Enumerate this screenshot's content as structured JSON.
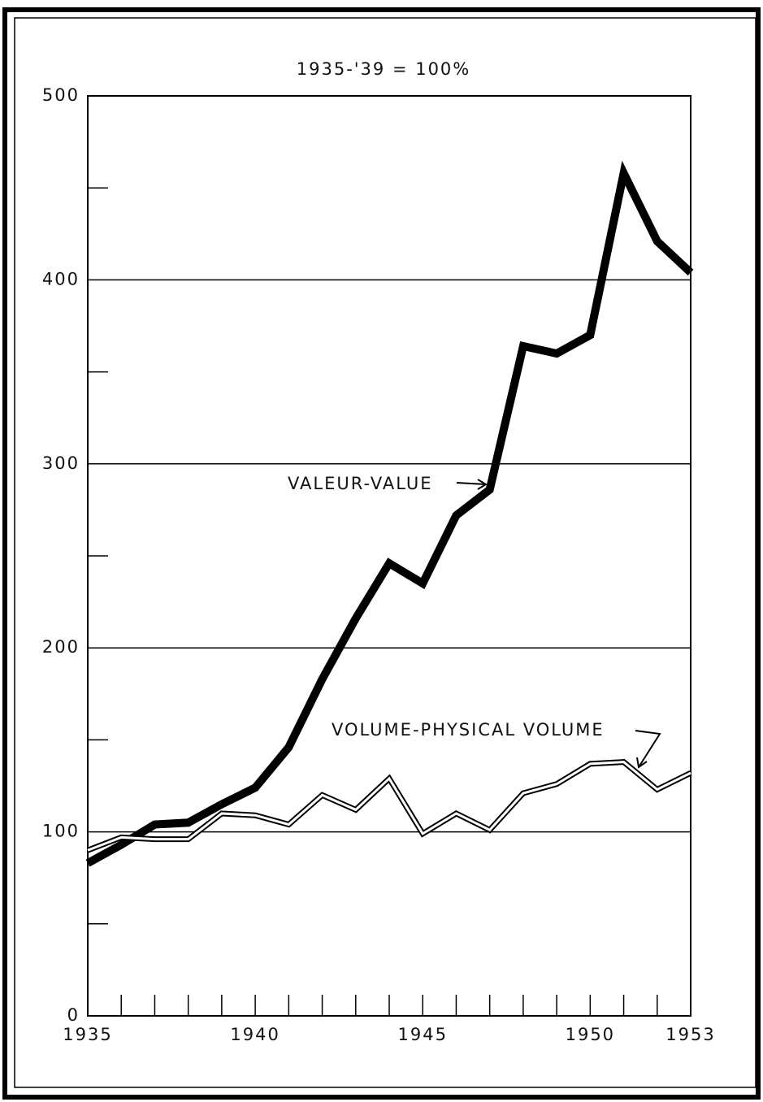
{
  "chart_data": {
    "type": "line",
    "subtitle": "1935-'39 = 100%",
    "x": [
      1935,
      1936,
      1937,
      1938,
      1939,
      1940,
      1941,
      1942,
      1943,
      1944,
      1945,
      1946,
      1947,
      1948,
      1949,
      1950,
      1951,
      1952,
      1953
    ],
    "series": [
      {
        "name": "VALEUR-VALUE",
        "color": "#000000",
        "style": "thick",
        "values": [
          83,
          93,
          104,
          105,
          115,
          124,
          146,
          183,
          216,
          246,
          235,
          272,
          286,
          364,
          360,
          370,
          458,
          421,
          404
        ]
      },
      {
        "name": "VOLUME-PHYSICAL VOLUME",
        "color": "#000000",
        "style": "double",
        "values": [
          90,
          97,
          96,
          96,
          110,
          109,
          104,
          120,
          112,
          129,
          99,
          110,
          101,
          121,
          126,
          137,
          138,
          123,
          132
        ]
      }
    ],
    "xlim": [
      1935,
      1953
    ],
    "xticks": [
      1935,
      1940,
      1945,
      1950,
      1953
    ],
    "ylim": [
      0,
      500
    ],
    "yticks": [
      0,
      100,
      200,
      300,
      400,
      500
    ],
    "yminorticks": [
      50,
      150,
      250,
      350,
      450
    ],
    "grid": true
  }
}
